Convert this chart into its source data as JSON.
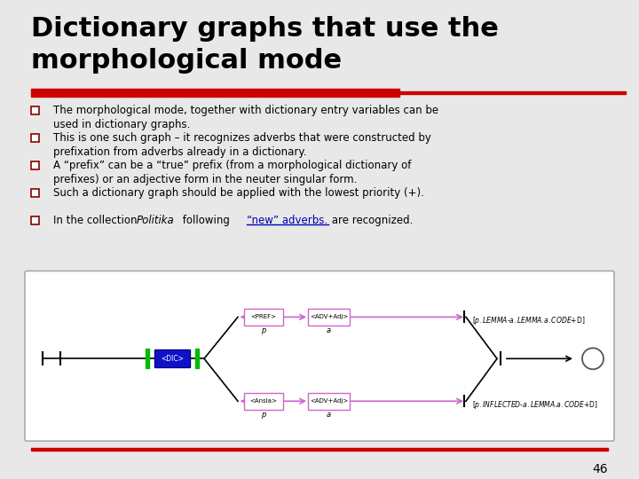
{
  "title": "Dictionary graphs that use the\nmorphological mode",
  "title_fontsize": 22,
  "title_color": "#000000",
  "bg_color": "#e8e8e8",
  "red_bar_color": "#cc0000",
  "bullet_points": [
    "The morphological mode, together with dictionary entry variables can be\nused in dictionary graphs.",
    "This is one such graph – it recognizes adverbs that were constructed by\nprefixation from adverbs already in a dictionary.",
    "A “prefix” can be a “true” prefix (from a morphological dictionary of\nprefixes) or an adjective form in the neuter singular form.",
    "Such a dictionary graph should be applied with the lowest priority (+).",
    ""
  ],
  "bullet5_part1": "In the collection ",
  "bullet5_italic": "Politika",
  "bullet5_part2": " following ",
  "bullet5_underline": "“new” adverbs.",
  "bullet5_part3": " are recognized.",
  "page_number": "46",
  "graph_labels": {
    "pref_box": "<PREF>",
    "adv_adj_box1": "<ADV+Adj>",
    "ansla_box": "<Ansla>",
    "adv_adj_box2": "<ADV+Adj>",
    "dic_box": "<DIC>",
    "p_label1": "$p$",
    "a_label1": "$a$",
    "p_label2": "$p$",
    "a_label2": "$a$",
    "output1": "[$p.LEMMA$-$a.LEMMA$.$a.CODE$+D]",
    "output2": "[$p.INFLECTED$-$a.LEMMA$.$a.CODE$+D]"
  }
}
